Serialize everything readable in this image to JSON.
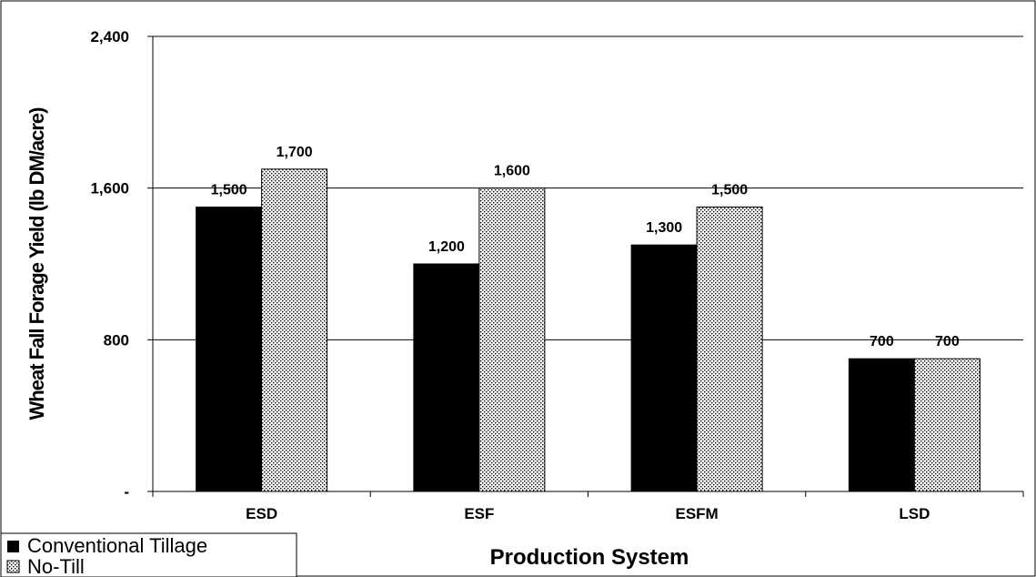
{
  "chart_data": {
    "type": "bar",
    "categories": [
      "ESD",
      "ESF",
      "ESFM",
      "LSD"
    ],
    "series": [
      {
        "name": "Conventional Tillage",
        "values": [
          1500,
          1200,
          1300,
          700
        ],
        "labels": [
          "1,500",
          "1,200",
          "1,300",
          "700"
        ],
        "color": "#000000",
        "pattern": "solid"
      },
      {
        "name": "No-Till",
        "values": [
          1700,
          1600,
          1500,
          700
        ],
        "labels": [
          "1,700",
          "1,600",
          "1,500",
          "700"
        ],
        "color": "#ffffff",
        "pattern": "dotted"
      }
    ],
    "xlabel": "Production System",
    "ylabel": "Wheat Fall Forage Yield (lb DM/acre)",
    "ylim": [
      0,
      2400
    ],
    "yticks": [
      0,
      800,
      1600,
      2400
    ],
    "ytick_labels": [
      "-",
      "800",
      "1,600",
      "2,400"
    ],
    "grid": true,
    "legend_position": "bottom-left"
  }
}
